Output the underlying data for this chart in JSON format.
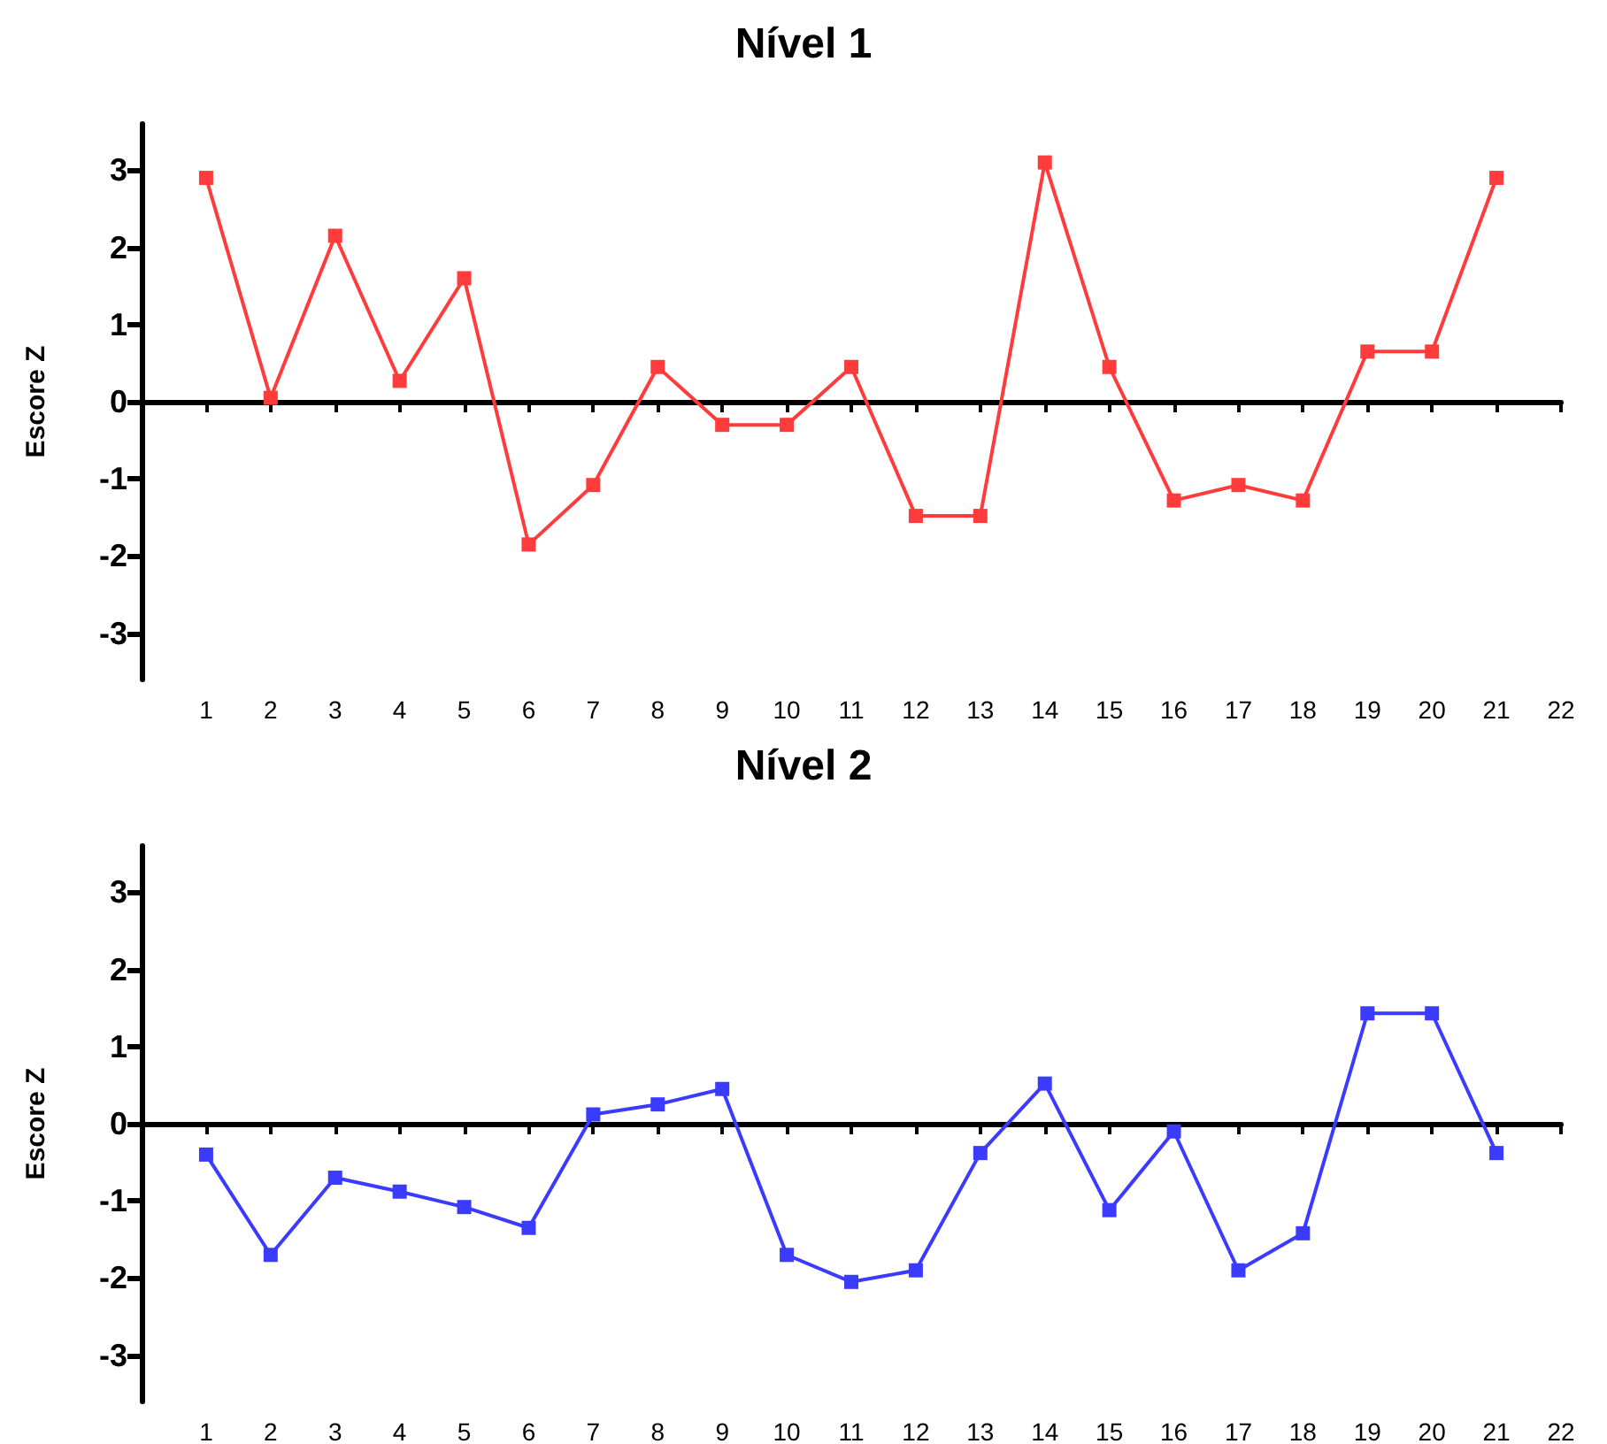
{
  "chart_data": [
    {
      "type": "line",
      "title": "Nível 1",
      "ylabel": "Escore Z",
      "x": [
        1,
        2,
        3,
        4,
        5,
        6,
        7,
        8,
        9,
        10,
        11,
        12,
        13,
        14,
        15,
        16,
        17,
        18,
        19,
        20,
        21
      ],
      "series": [
        {
          "color": "#ff3b3b",
          "values": [
            2.9,
            0.05,
            2.15,
            0.27,
            1.6,
            -1.85,
            -1.08,
            0.45,
            -0.3,
            -0.3,
            0.45,
            -1.48,
            -1.48,
            3.1,
            0.45,
            -1.28,
            -1.08,
            -1.28,
            0.65,
            0.65,
            2.9
          ]
        }
      ],
      "xlim": [
        0,
        22
      ],
      "xticks": [
        1,
        2,
        3,
        4,
        5,
        6,
        7,
        8,
        9,
        10,
        11,
        12,
        13,
        14,
        15,
        16,
        17,
        18,
        19,
        20,
        21,
        22
      ],
      "ylim": [
        -3.6,
        3.6
      ],
      "yticks": [
        -3,
        -2,
        -1,
        0,
        1,
        2,
        3
      ],
      "marker": "square",
      "line_style": "solid"
    },
    {
      "type": "line",
      "title": "Nível 2",
      "ylabel": "Escore Z",
      "x": [
        1,
        2,
        3,
        4,
        5,
        6,
        7,
        8,
        9,
        10,
        11,
        12,
        13,
        14,
        15,
        16,
        17,
        18,
        19,
        20,
        21
      ],
      "series": [
        {
          "color": "#3b3bff",
          "values": [
            -0.4,
            -1.7,
            -0.7,
            -0.88,
            -1.08,
            -1.35,
            0.12,
            0.25,
            0.45,
            -1.7,
            -2.05,
            -1.9,
            -0.38,
            0.52,
            -1.12,
            -0.1,
            -1.9,
            -1.42,
            1.43,
            1.43,
            -0.38
          ]
        }
      ],
      "xlim": [
        0,
        22
      ],
      "xticks": [
        1,
        2,
        3,
        4,
        5,
        6,
        7,
        8,
        9,
        10,
        11,
        12,
        13,
        14,
        15,
        16,
        17,
        18,
        19,
        20,
        21,
        22
      ],
      "ylim": [
        -3.6,
        3.6
      ],
      "yticks": [
        -3,
        -2,
        -1,
        0,
        1,
        2,
        3
      ],
      "marker": "square",
      "line_style": "solid"
    }
  ]
}
